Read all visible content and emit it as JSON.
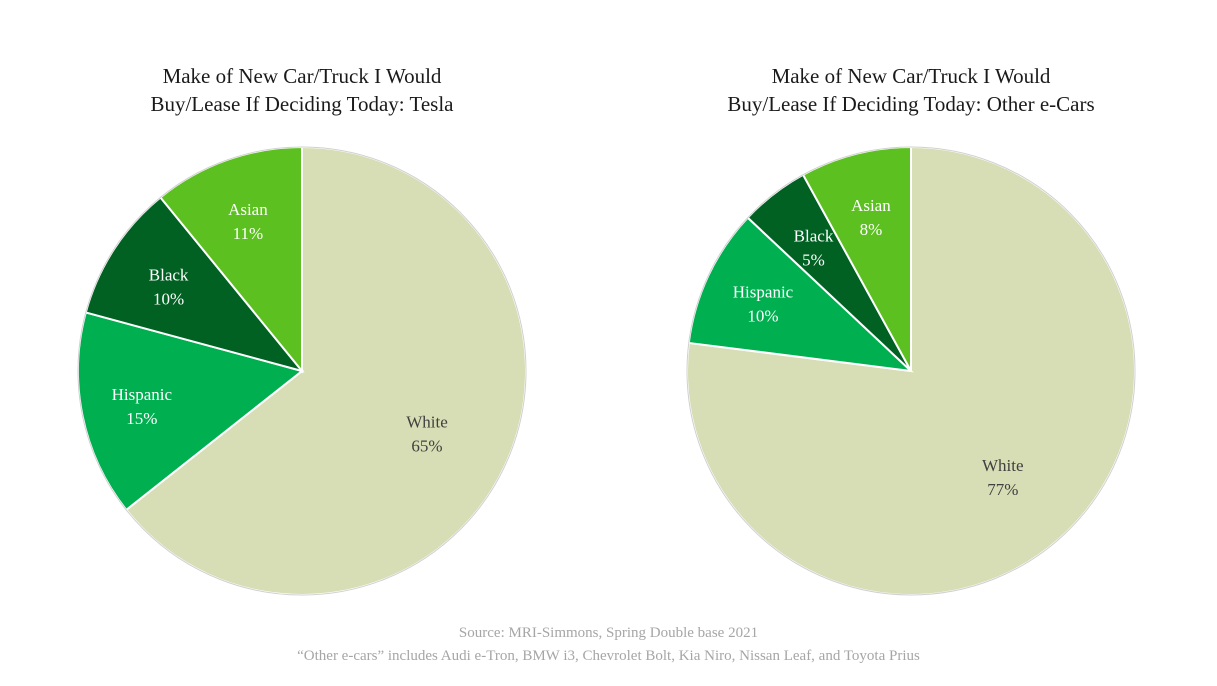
{
  "chart_data": [
    {
      "type": "pie",
      "title_lines": [
        "Make of New Car/Truck I Would",
        "Buy/Lease If Deciding Today: Tesla"
      ],
      "slices": [
        {
          "label": "White",
          "value_label": "65%",
          "value": 65,
          "color": "#d7ddb4",
          "text_color": "#404040"
        },
        {
          "label": "Hispanic",
          "value_label": "15%",
          "value": 15,
          "color": "#00b050",
          "text_color": "#ffffff"
        },
        {
          "label": "Black",
          "value_label": "10%",
          "value": 10,
          "color": "#006122",
          "text_color": "#ffffff"
        },
        {
          "label": "Asian",
          "value_label": "11%",
          "value": 11,
          "color": "#5cc020",
          "text_color": "#ffffff"
        }
      ]
    },
    {
      "type": "pie",
      "title_lines": [
        "Make of New Car/Truck I Would",
        "Buy/Lease If Deciding Today: Other e-Cars"
      ],
      "slices": [
        {
          "label": "White",
          "value_label": "77%",
          "value": 77,
          "color": "#d7ddb4",
          "text_color": "#404040"
        },
        {
          "label": "Hispanic",
          "value_label": "10%",
          "value": 10,
          "color": "#00b050",
          "text_color": "#ffffff"
        },
        {
          "label": "Black",
          "value_label": "5%",
          "value": 5,
          "color": "#006122",
          "text_color": "#ffffff"
        },
        {
          "label": "Asian",
          "value_label": "8%",
          "value": 8,
          "color": "#5cc020",
          "text_color": "#ffffff"
        }
      ]
    }
  ],
  "footer": {
    "source": "Source: MRI-Simmons, Spring Double base 2021",
    "note": "“Other e-cars” includes Audi e-Tron, BMW i3, Chevrolet Bolt, Kia Niro, Nissan Leaf, and Toyota Prius"
  }
}
